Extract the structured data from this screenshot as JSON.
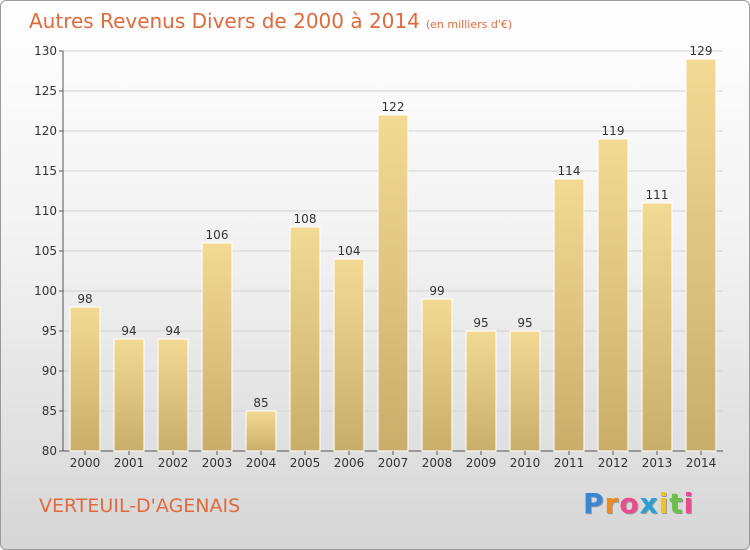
{
  "header": {
    "title": "Autres Revenus Divers de 2000 à 2014",
    "subtitle": "(en milliers d'€)"
  },
  "footer": {
    "commune": "VERTEUIL-D'AGENAIS",
    "logo_letters": [
      "P",
      "r",
      "o",
      "x",
      "i",
      "t",
      "i"
    ],
    "logo_colors": [
      "#3a86d8",
      "#f08a1c",
      "#e94b8c",
      "#2a9fd6",
      "#f4c21c",
      "#6cc04a",
      "#e94b8c"
    ]
  },
  "colors": {
    "accent": "#e06a3c",
    "bar_light": "#f3da93",
    "bar_dark": "#c9ae6a"
  },
  "chart_data": {
    "type": "bar",
    "title": "Autres Revenus Divers de 2000 à 2014",
    "subtitle": "(en milliers d'€)",
    "categories": [
      "2000",
      "2001",
      "2002",
      "2003",
      "2004",
      "2005",
      "2006",
      "2007",
      "2008",
      "2009",
      "2010",
      "2011",
      "2012",
      "2013",
      "2014"
    ],
    "values": [
      98,
      94,
      94,
      106,
      85,
      108,
      104,
      122,
      99,
      95,
      95,
      114,
      119,
      111,
      129
    ],
    "ylim": [
      80,
      130
    ],
    "yticks": [
      80,
      85,
      90,
      95,
      100,
      105,
      110,
      115,
      120,
      125,
      130
    ],
    "grid": true,
    "xlabel": "",
    "ylabel": ""
  }
}
